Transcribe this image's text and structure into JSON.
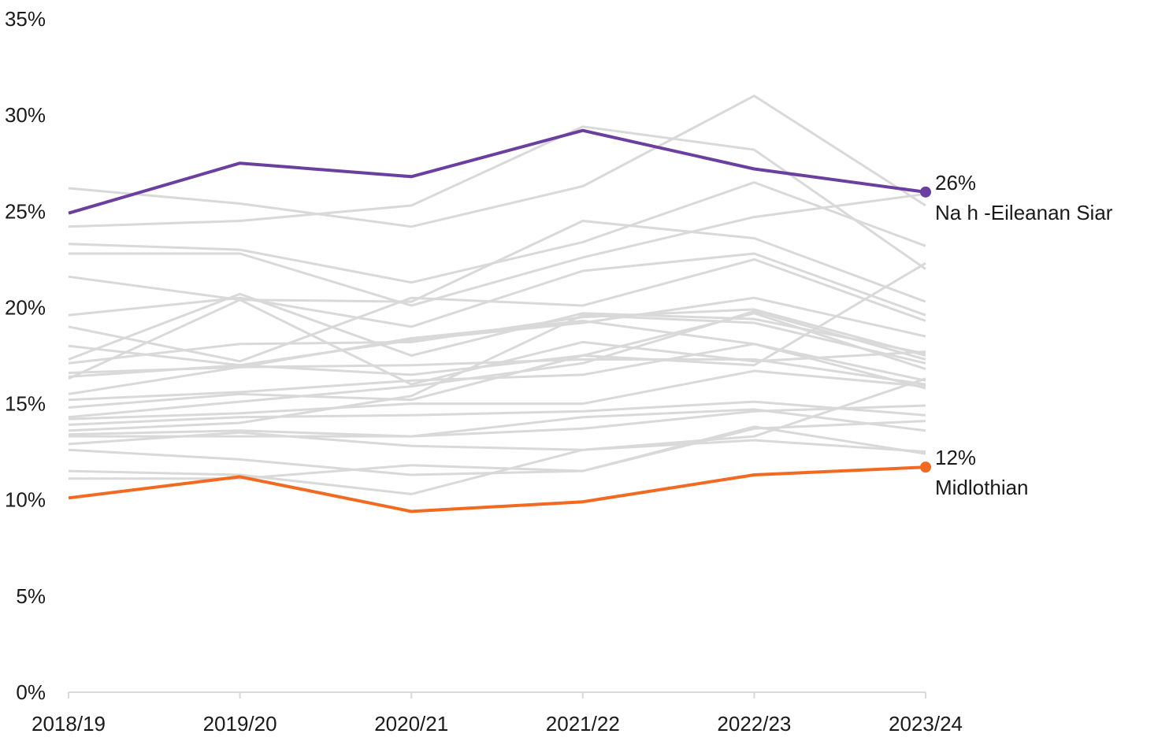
{
  "chart_data": {
    "type": "line",
    "title": "",
    "xlabel": "",
    "ylabel": "",
    "x": [
      "2018/19",
      "2019/20",
      "2020/21",
      "2021/22",
      "2022/23",
      "2023/24"
    ],
    "ylim": [
      0,
      35
    ],
    "yticks": [
      "0%",
      "5%",
      "10%",
      "15%",
      "20%",
      "25%",
      "30%",
      "35%"
    ],
    "grid": false,
    "colors": {
      "background_series": "#d9d9d9",
      "highlight_high": "#6b3fa0",
      "highlight_low": "#f26a21",
      "axis": "#d9d9d9"
    },
    "series": [
      {
        "name": "Na h -Eileanan Siar",
        "highlight": true,
        "color": "#6b3fa0",
        "values": [
          24.9,
          27.5,
          26.8,
          29.2,
          27.2,
          26.0
        ],
        "end_value_label": "26%"
      },
      {
        "name": "Midlothian",
        "highlight": true,
        "color": "#f26a21",
        "values": [
          10.1,
          11.2,
          9.4,
          9.9,
          11.3,
          11.7
        ],
        "end_value_label": "12%"
      },
      {
        "values": [
          26.2,
          25.4,
          24.2,
          26.3,
          31.0,
          25.3
        ]
      },
      {
        "values": [
          24.2,
          24.5,
          25.3,
          29.4,
          28.2,
          22.0
        ]
      },
      {
        "values": [
          23.3,
          23.0,
          21.3,
          23.4,
          26.5,
          23.2
        ]
      },
      {
        "values": [
          22.8,
          22.8,
          20.1,
          22.6,
          24.7,
          25.9
        ]
      },
      {
        "values": [
          21.6,
          20.4,
          20.3,
          24.5,
          23.6,
          20.3
        ]
      },
      {
        "values": [
          19.6,
          20.5,
          19.0,
          21.9,
          22.8,
          19.6
        ]
      },
      {
        "values": [
          19.0,
          17.2,
          20.5,
          20.1,
          22.5,
          19.3
        ]
      },
      {
        "values": [
          18.0,
          17.0,
          18.3,
          19.2,
          20.5,
          18.5
        ]
      },
      {
        "values": [
          17.3,
          20.7,
          17.5,
          19.7,
          19.4,
          17.6
        ]
      },
      {
        "values": [
          17.1,
          18.1,
          18.2,
          19.5,
          19.9,
          17.5
        ]
      },
      {
        "values": [
          16.6,
          16.9,
          18.4,
          19.3,
          18.1,
          16.2
        ]
      },
      {
        "values": [
          16.3,
          20.4,
          16.0,
          18.2,
          17.2,
          17.7
        ]
      },
      {
        "values": [
          16.4,
          17.0,
          16.5,
          17.5,
          19.7,
          16.8
        ]
      },
      {
        "values": [
          15.5,
          16.9,
          17.0,
          17.3,
          17.3,
          16.0
        ]
      },
      {
        "values": [
          15.2,
          15.6,
          16.2,
          16.5,
          18.1,
          15.8
        ]
      },
      {
        "values": [
          14.8,
          15.5,
          15.2,
          17.5,
          17.0,
          22.3
        ]
      },
      {
        "values": [
          14.3,
          15.1,
          15.9,
          17.1,
          19.8,
          17.3
        ]
      },
      {
        "values": [
          14.2,
          14.5,
          15.0,
          15.0,
          16.7,
          15.9
        ]
      },
      {
        "values": [
          13.9,
          14.3,
          14.4,
          14.6,
          15.1,
          14.4
        ]
      },
      {
        "values": [
          13.6,
          14.0,
          15.4,
          19.6,
          19.2,
          17.1
        ]
      },
      {
        "values": [
          13.4,
          13.6,
          13.3,
          13.7,
          14.6,
          14.9
        ]
      },
      {
        "values": [
          13.3,
          13.3,
          13.3,
          14.3,
          14.7,
          13.6
        ]
      },
      {
        "values": [
          12.9,
          13.5,
          12.8,
          12.6,
          13.3,
          16.3
        ]
      },
      {
        "values": [
          12.6,
          12.1,
          11.3,
          11.5,
          13.7,
          14.1
        ]
      },
      {
        "values": [
          11.5,
          11.3,
          10.3,
          12.6,
          13.1,
          12.5
        ]
      },
      {
        "values": [
          11.1,
          11.1,
          11.8,
          11.5,
          13.8,
          12.4
        ]
      }
    ]
  }
}
